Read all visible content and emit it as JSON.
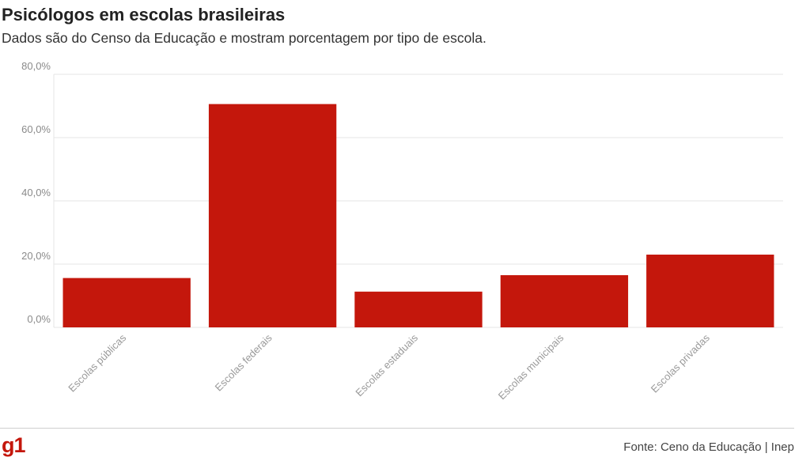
{
  "header": {
    "title": "Psicólogos em escolas brasileiras",
    "subtitle": "Dados são do Censo da Educação e mostram porcentagem por tipo de escola."
  },
  "footer": {
    "logo": "g1",
    "source": "Fonte: Ceno da Educação | Inep"
  },
  "colors": {
    "bar": "#c4170c",
    "grid": "#e6e6e6"
  },
  "chart_data": {
    "type": "bar",
    "categories": [
      "Escolas públicas",
      "Escolas federais",
      "Escolas estaduais",
      "Escolas municipais",
      "Escolas privadas"
    ],
    "values": [
      15.6,
      70.6,
      11.3,
      16.5,
      23.0
    ],
    "ylim": [
      0,
      80
    ],
    "yticks": [
      0,
      20,
      40,
      60,
      80
    ],
    "ytick_labels": [
      "0,0%",
      "20,0%",
      "40,0%",
      "60,0%",
      "80,0%"
    ],
    "grid": true
  }
}
